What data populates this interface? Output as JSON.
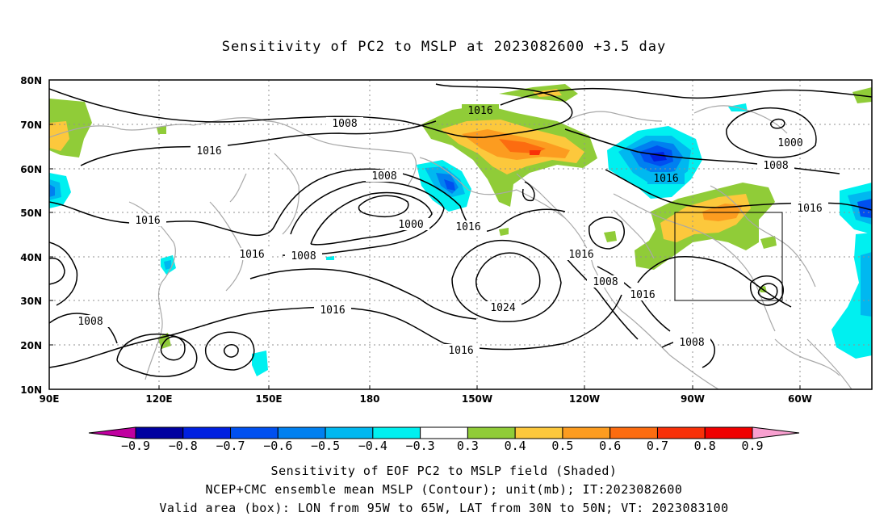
{
  "title": "Sensitivity of PC2 to MSLP at 2023082600 +3.5 day",
  "footer": {
    "line1": "Sensitivity of EOF PC2 to MSLP field (Shaded)",
    "line2": "NCEP+CMC ensemble mean MSLP (Contour); unit(mb); IT:2023082600",
    "line3": "Valid area (box): LON from 95W to 65W, LAT from 30N to 50N; VT: 2023083100"
  },
  "map": {
    "lat_ticks": [
      "80N",
      "70N",
      "60N",
      "50N",
      "40N",
      "30N",
      "20N",
      "10N"
    ],
    "lon_ticks": [
      "90E",
      "120E",
      "150E",
      "180",
      "150W",
      "120W",
      "90W",
      "60W"
    ],
    "contour_labels": [
      {
        "text": "1016"
      },
      {
        "text": "1008"
      },
      {
        "text": "1016"
      },
      {
        "text": "1008"
      },
      {
        "text": "1000"
      },
      {
        "text": "1016"
      },
      {
        "text": "1016"
      },
      {
        "text": "1016"
      },
      {
        "text": "1008"
      },
      {
        "text": "1016"
      },
      {
        "text": "1024"
      },
      {
        "text": "1016"
      },
      {
        "text": "1016"
      },
      {
        "text": "1008"
      },
      {
        "text": "1016"
      },
      {
        "text": "1008"
      },
      {
        "text": "1016"
      },
      {
        "text": "1008"
      },
      {
        "text": "1000"
      },
      {
        "text": "1008"
      },
      {
        "text": "1016"
      }
    ],
    "box": {
      "lon_min": "95W",
      "lon_max": "65W",
      "lat_min": "30N",
      "lat_max": "50N"
    }
  },
  "colorbar": {
    "labels": [
      "-0.9",
      "-0.8",
      "-0.7",
      "-0.6",
      "-0.5",
      "-0.4",
      "-0.3",
      "0.3",
      "0.4",
      "0.5",
      "0.6",
      "0.7",
      "0.8",
      "0.9"
    ],
    "colors": [
      "#0000a0",
      "#0020e0",
      "#0050f0",
      "#0080f0",
      "#00b8f0",
      "#00f0f0",
      "#ffffff",
      "#90cc38",
      "#fcc83c",
      "#fc9c20",
      "#fc6c10",
      "#f83008",
      "#f00000"
    ],
    "low_arrow_color": "#c000a0",
    "high_arrow_color": "#f8a0d0"
  }
}
